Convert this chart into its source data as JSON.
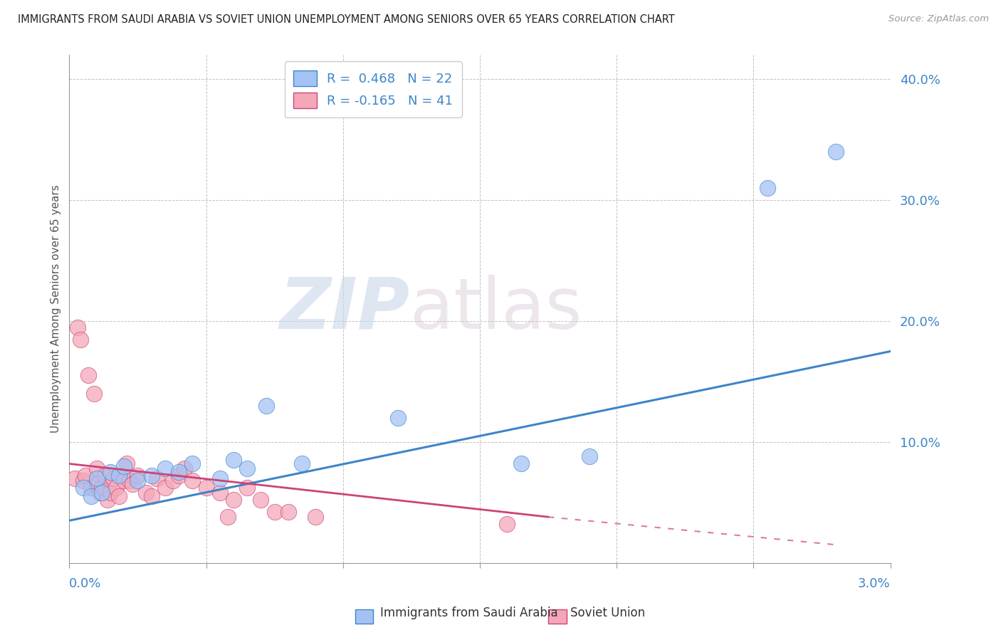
{
  "title": "IMMIGRANTS FROM SAUDI ARABIA VS SOVIET UNION UNEMPLOYMENT AMONG SENIORS OVER 65 YEARS CORRELATION CHART",
  "source": "Source: ZipAtlas.com",
  "ylabel": "Unemployment Among Seniors over 65 years",
  "xlim": [
    0.0,
    3.0
  ],
  "ylim": [
    0.0,
    42.0
  ],
  "yticks": [
    0,
    10,
    20,
    30,
    40
  ],
  "legend_label1": "R =  0.468   N = 22",
  "legend_label2": "R = -0.165   N = 41",
  "watermark_zip": "ZIP",
  "watermark_atlas": "atlas",
  "color_saudi": "#a4c2f4",
  "color_soviet": "#f4a7b9",
  "color_saudi_edge": "#3d85c8",
  "color_soviet_edge": "#cc4477",
  "color_saudi_line": "#3d85c8",
  "color_soviet_line": "#cc4477",
  "saudi_data_x": [
    0.05,
    0.08,
    0.1,
    0.12,
    0.15,
    0.18,
    0.2,
    0.25,
    0.3,
    0.35,
    0.4,
    0.45,
    0.55,
    0.6,
    0.65,
    0.72,
    0.85,
    1.2,
    1.65,
    1.9,
    2.55,
    2.8
  ],
  "saudi_data_y": [
    6.2,
    5.5,
    7.0,
    5.8,
    7.5,
    7.2,
    8.0,
    6.8,
    7.2,
    7.8,
    7.5,
    8.2,
    7.0,
    8.5,
    7.8,
    13.0,
    8.2,
    12.0,
    8.2,
    8.8,
    31.0,
    34.0
  ],
  "soviet_data_x": [
    0.02,
    0.03,
    0.04,
    0.05,
    0.06,
    0.07,
    0.08,
    0.09,
    0.1,
    0.1,
    0.11,
    0.12,
    0.13,
    0.14,
    0.15,
    0.16,
    0.17,
    0.18,
    0.2,
    0.21,
    0.22,
    0.23,
    0.25,
    0.28,
    0.3,
    0.32,
    0.35,
    0.38,
    0.4,
    0.42,
    0.45,
    0.5,
    0.55,
    0.58,
    0.6,
    0.65,
    0.7,
    0.75,
    0.8,
    0.9,
    1.6
  ],
  "soviet_data_y": [
    7.0,
    19.5,
    18.5,
    6.8,
    7.2,
    15.5,
    6.2,
    14.0,
    6.5,
    7.8,
    5.8,
    6.2,
    7.2,
    5.2,
    5.8,
    7.0,
    6.2,
    5.5,
    6.8,
    8.2,
    6.8,
    6.5,
    7.2,
    5.8,
    5.5,
    7.0,
    6.2,
    6.8,
    7.2,
    7.8,
    6.8,
    6.2,
    5.8,
    3.8,
    5.2,
    6.2,
    5.2,
    4.2,
    4.2,
    3.8,
    3.2
  ],
  "saudi_trend_x": [
    0.0,
    3.0
  ],
  "saudi_trend_y": [
    3.5,
    17.5
  ],
  "soviet_trend_x": [
    0.0,
    1.75
  ],
  "soviet_trend_y": [
    8.2,
    3.8
  ],
  "xlabel_ticks": [
    0.0,
    0.5,
    1.0,
    1.5,
    2.0,
    2.5,
    3.0
  ]
}
